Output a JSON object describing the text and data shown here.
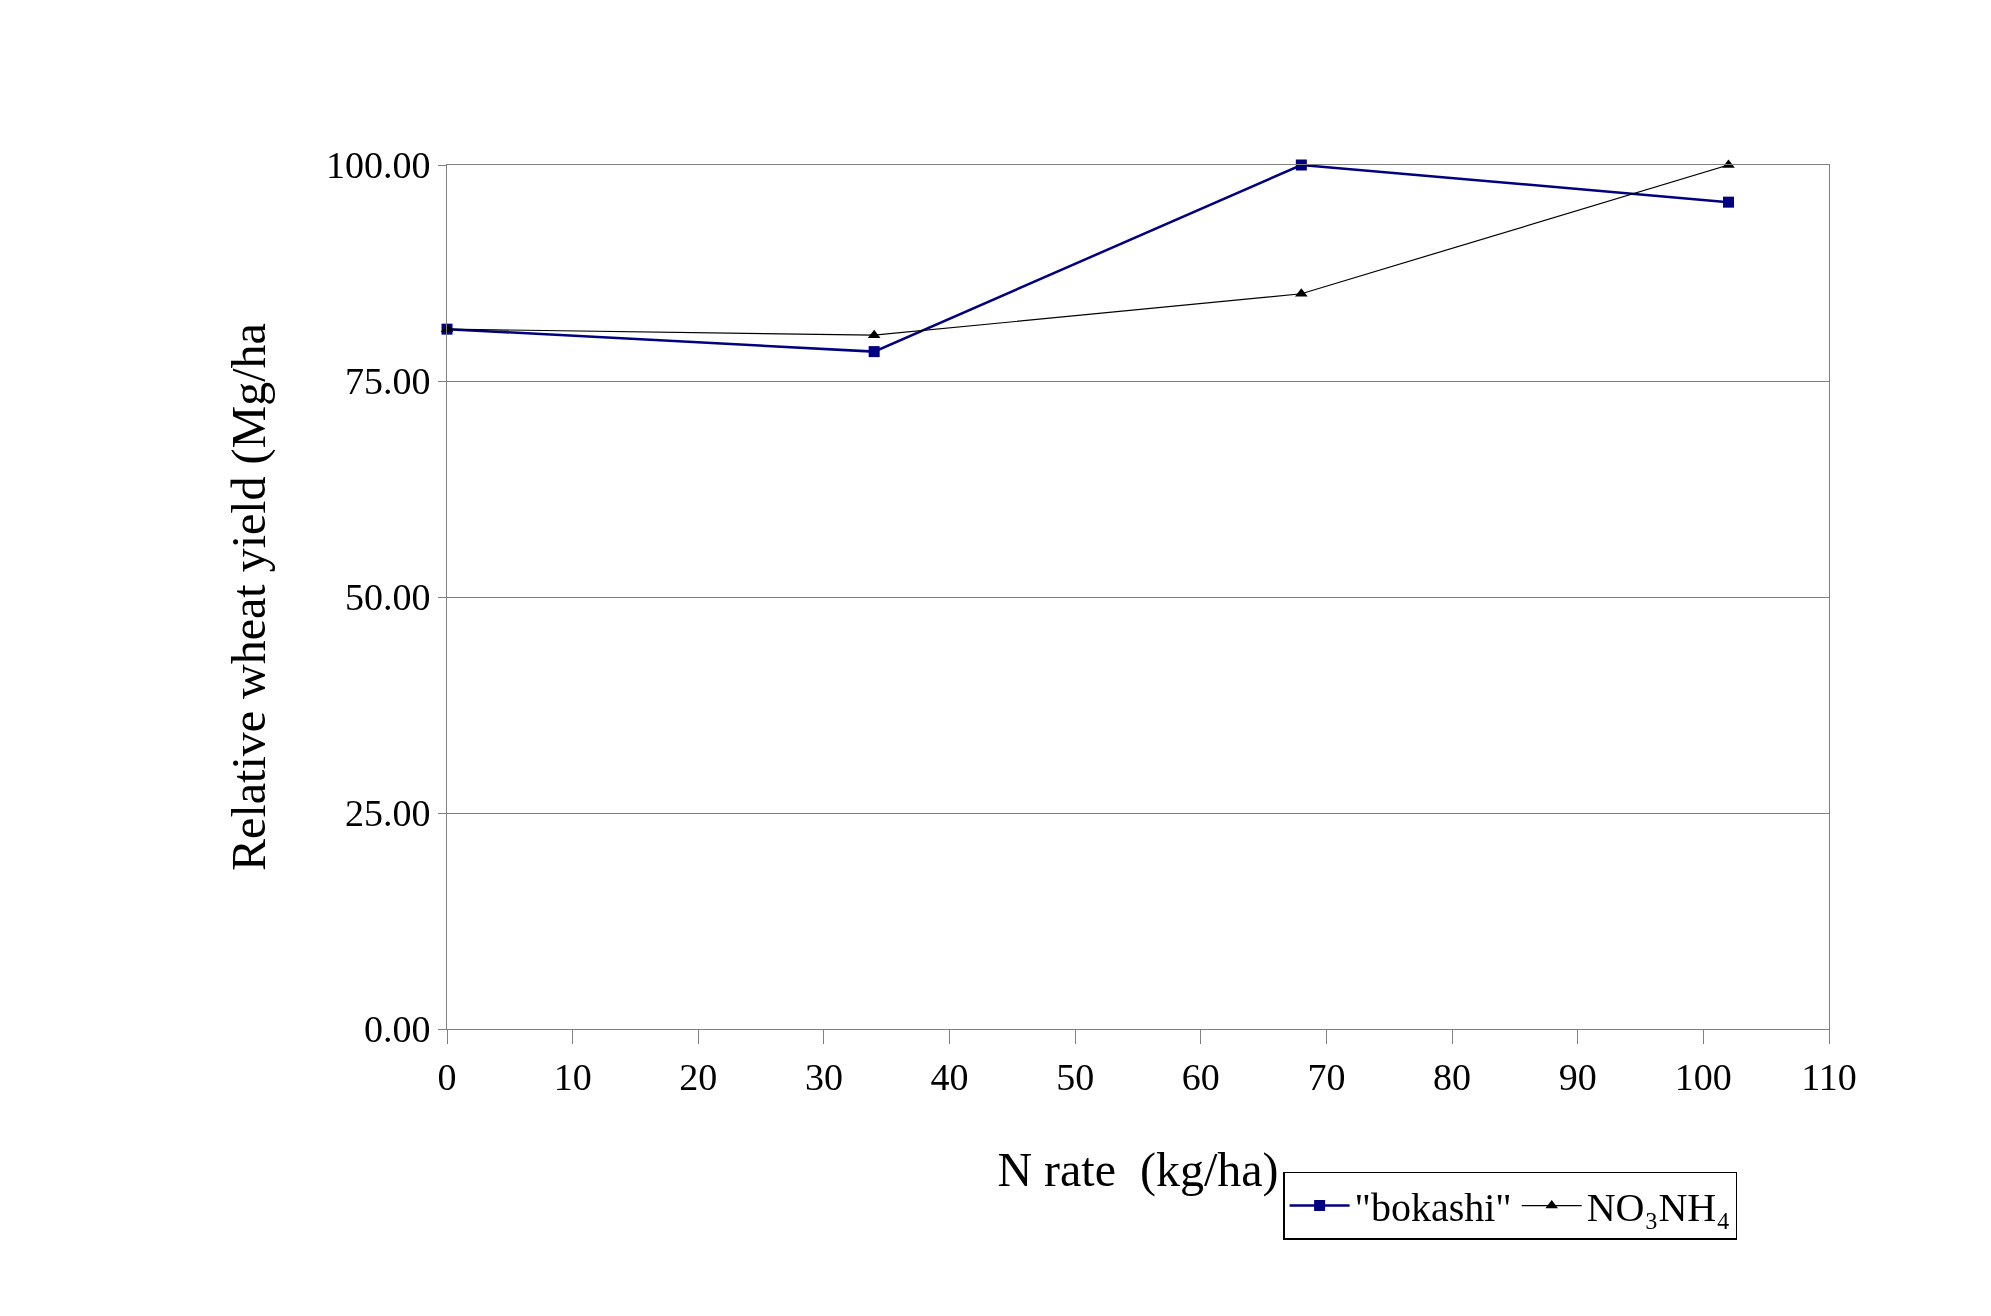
{
  "chart_data": {
    "type": "line",
    "xlabel": "N rate  (kg/ha)",
    "ylabel": "Relative wheat yield (Mg/ha",
    "x": [
      0,
      34,
      68,
      102
    ],
    "series": [
      {
        "name": "\"bokashi\"",
        "color": "#000080",
        "values": [
          81.0,
          78.4,
          100.0,
          95.7
        ],
        "marker": "square"
      },
      {
        "name": "NO₃NH₄",
        "color": "#000000",
        "values": [
          81.0,
          80.3,
          85.1,
          100.0
        ],
        "marker": "triangle"
      }
    ],
    "xlim": [
      0,
      110
    ],
    "xticks": [
      0,
      10,
      20,
      30,
      40,
      50,
      60,
      70,
      80,
      90,
      100,
      110
    ],
    "ylim": [
      0,
      100
    ],
    "yticks": [
      {
        "value": 0,
        "label": "0.00"
      },
      {
        "value": 25,
        "label": "25.00"
      },
      {
        "value": 50,
        "label": "50.00"
      },
      {
        "value": 75,
        "label": "75.00"
      },
      {
        "value": 100,
        "label": "100.00"
      }
    ],
    "grid": "y",
    "legend": "bottom right",
    "line_style": "solid"
  }
}
